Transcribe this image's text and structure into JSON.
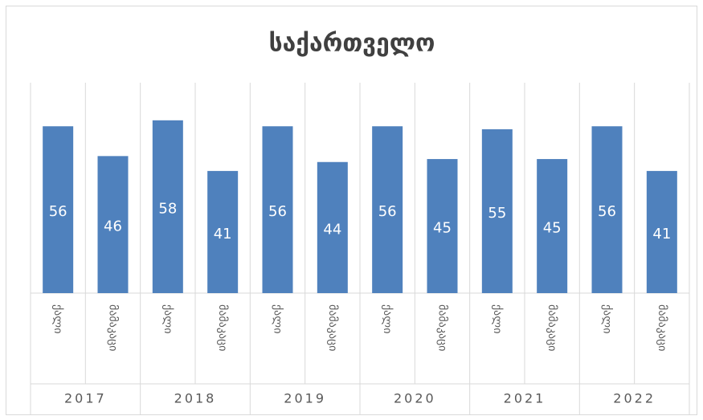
{
  "chart_data": {
    "type": "bar",
    "title": "საქართველო",
    "categories": [
      "ქალი",
      "მამაკაცი",
      "ქალი",
      "მამაკაცი",
      "ქალი",
      "მამაკაცი",
      "ქალი",
      "მამაკაცი",
      "ქალი",
      "მამაკაცი",
      "ქალი",
      "მამაკაცი"
    ],
    "groups": [
      "2017",
      "2018",
      "2019",
      "2020",
      "2021",
      "2022"
    ],
    "values": [
      56,
      46,
      58,
      41,
      56,
      44,
      56,
      45,
      55,
      45,
      56,
      41
    ],
    "color": "#4f81bd"
  }
}
